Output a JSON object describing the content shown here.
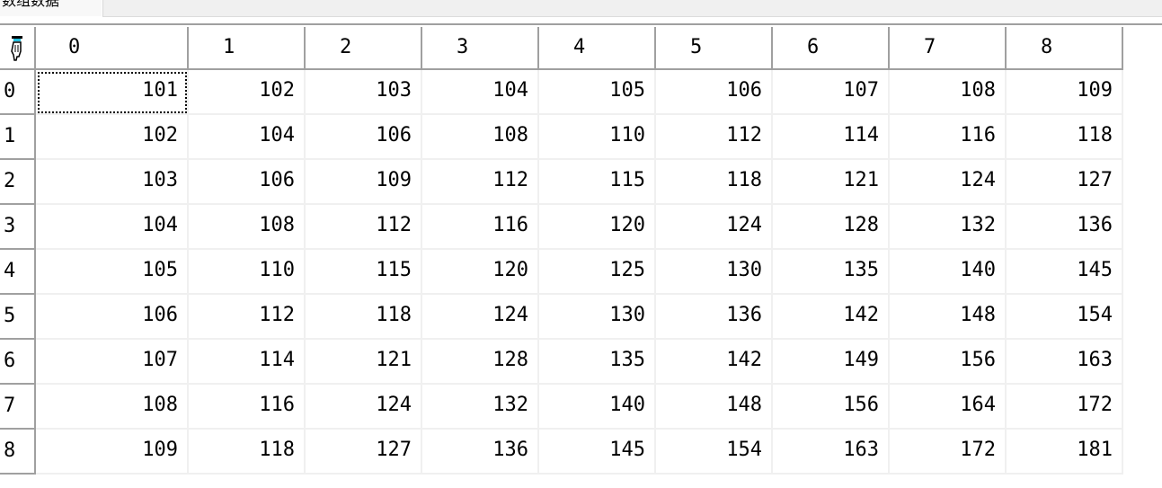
{
  "tab": {
    "label": "数组数据"
  },
  "corner_icon": "select-all-hand-icon",
  "table": {
    "columns": [
      "0",
      "1",
      "2",
      "3",
      "4",
      "5",
      "6",
      "7",
      "8"
    ],
    "row_headers": [
      "0",
      "1",
      "2",
      "3",
      "4",
      "5",
      "6",
      "7",
      "8"
    ],
    "rows": [
      [
        "101",
        "102",
        "103",
        "104",
        "105",
        "106",
        "107",
        "108",
        "109"
      ],
      [
        "102",
        "104",
        "106",
        "108",
        "110",
        "112",
        "114",
        "116",
        "118"
      ],
      [
        "103",
        "106",
        "109",
        "112",
        "115",
        "118",
        "121",
        "124",
        "127"
      ],
      [
        "104",
        "108",
        "112",
        "116",
        "120",
        "124",
        "128",
        "132",
        "136"
      ],
      [
        "105",
        "110",
        "115",
        "120",
        "125",
        "130",
        "135",
        "140",
        "145"
      ],
      [
        "106",
        "112",
        "118",
        "124",
        "130",
        "136",
        "142",
        "148",
        "154"
      ],
      [
        "107",
        "114",
        "121",
        "128",
        "135",
        "142",
        "149",
        "156",
        "163"
      ],
      [
        "108",
        "116",
        "124",
        "132",
        "140",
        "148",
        "156",
        "164",
        "172"
      ],
      [
        "109",
        "118",
        "127",
        "136",
        "145",
        "154",
        "163",
        "172",
        "181"
      ]
    ],
    "focused_cell": {
      "row": 0,
      "col": 0
    }
  }
}
